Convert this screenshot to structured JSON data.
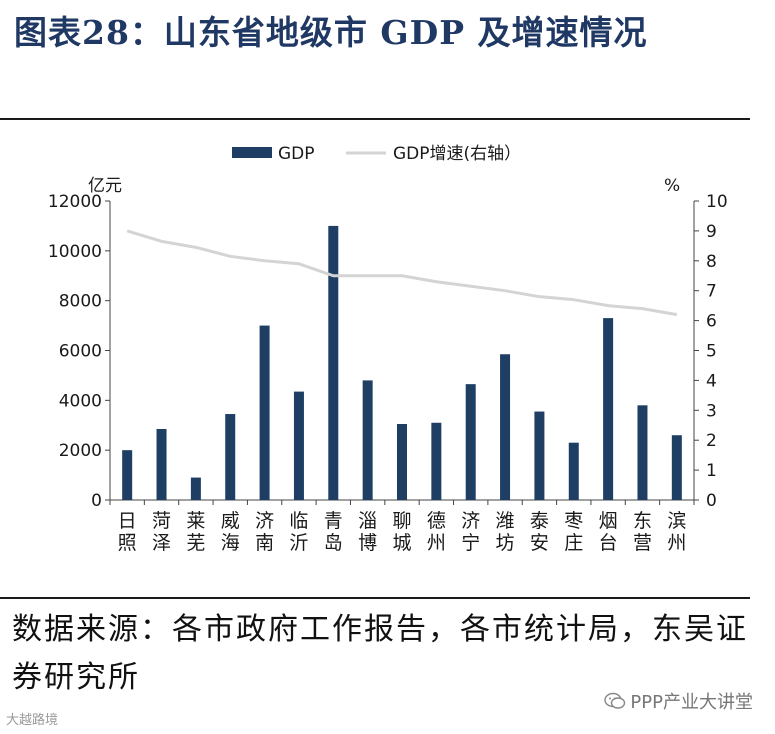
{
  "title": "图表28：山东省地级市 GDP 及增速情况",
  "source": "数据来源：各市政府工作报告，各市统计局，东吴证券研究所",
  "watermark": {
    "right": "PPP产业大讲堂",
    "left": "大越路境"
  },
  "colors": {
    "bar": "#1f3e64",
    "line": "#d4d4d4",
    "title": "#1f3864"
  },
  "chart_data": {
    "type": "bar",
    "categories": [
      "日照",
      "菏泽",
      "莱芜",
      "威海",
      "济南",
      "临沂",
      "青岛",
      "淄博",
      "聊城",
      "德州",
      "济宁",
      "潍坊",
      "泰安",
      "枣庄",
      "烟台",
      "东营",
      "滨州"
    ],
    "series": [
      {
        "name": "GDP",
        "type": "bar",
        "axis": "left",
        "values": [
          2000,
          2850,
          900,
          3450,
          7000,
          4350,
          11000,
          4800,
          3050,
          3100,
          4650,
          5850,
          3550,
          2300,
          7300,
          3800,
          2600
        ]
      },
      {
        "name": "GDP增速(右轴）",
        "type": "line",
        "axis": "right",
        "values": [
          9.0,
          8.65,
          8.45,
          8.15,
          8.0,
          7.9,
          7.5,
          7.5,
          7.5,
          7.3,
          7.15,
          7.0,
          6.8,
          6.7,
          6.5,
          6.4,
          6.2
        ]
      }
    ],
    "left_axis": {
      "unit": "亿元",
      "min": 0,
      "max": 12000,
      "ticks": [
        0,
        2000,
        4000,
        6000,
        8000,
        10000,
        12000
      ]
    },
    "right_axis": {
      "unit": "%",
      "min": 0,
      "max": 10,
      "ticks": [
        0,
        1,
        2,
        3,
        4,
        5,
        6,
        7,
        8,
        9,
        10
      ]
    },
    "legend": [
      "GDP",
      "GDP增速(右轴）"
    ]
  }
}
